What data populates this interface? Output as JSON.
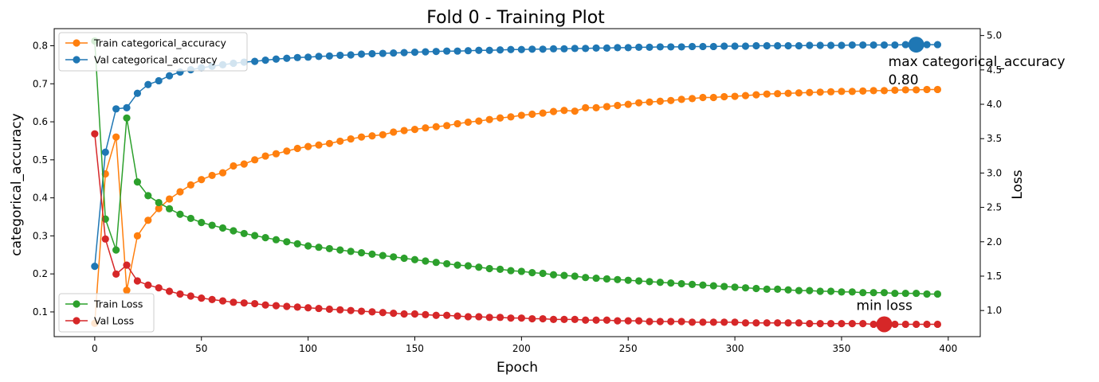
{
  "chart_data": {
    "type": "line",
    "title": "Fold 0 - Training Plot",
    "xlabel": "Epoch",
    "ylabel_left": "categorical_accuracy",
    "ylabel_right": "Loss",
    "xlim": [
      -19,
      415
    ],
    "ylim_left": [
      0.035,
      0.845
    ],
    "ylim_right": [
      0.62,
      5.1
    ],
    "xticks": [
      0,
      50,
      100,
      150,
      200,
      250,
      300,
      350,
      400
    ],
    "yticks_left": [
      0.1,
      0.2,
      0.3,
      0.4,
      0.5,
      0.6,
      0.7,
      0.8
    ],
    "yticks_right": [
      1.0,
      1.5,
      2.0,
      2.5,
      3.0,
      3.5,
      4.0,
      4.5,
      5.0
    ],
    "grid": false,
    "x_step": 5,
    "x_start": 0,
    "series": [
      {
        "name": "Train categorical_accuracy",
        "axis": "left",
        "color": "#ff7f0e",
        "values": [
          0.07,
          0.463,
          0.56,
          0.157,
          0.3,
          0.341,
          0.372,
          0.397,
          0.416,
          0.434,
          0.448,
          0.459,
          0.466,
          0.484,
          0.489,
          0.5,
          0.51,
          0.516,
          0.523,
          0.53,
          0.535,
          0.539,
          0.543,
          0.549,
          0.555,
          0.56,
          0.563,
          0.566,
          0.573,
          0.577,
          0.58,
          0.584,
          0.587,
          0.59,
          0.595,
          0.599,
          0.602,
          0.606,
          0.61,
          0.613,
          0.617,
          0.62,
          0.623,
          0.627,
          0.63,
          0.628,
          0.637,
          0.637,
          0.64,
          0.643,
          0.646,
          0.65,
          0.652,
          0.654,
          0.656,
          0.659,
          0.661,
          0.664,
          0.664,
          0.666,
          0.667,
          0.669,
          0.671,
          0.673,
          0.674,
          0.675,
          0.676,
          0.677,
          0.678,
          0.679,
          0.68,
          0.68,
          0.681,
          0.682,
          0.682,
          0.683,
          0.684,
          0.684,
          0.685,
          0.685
        ]
      },
      {
        "name": "Val categorical_accuracy",
        "axis": "left",
        "color": "#1f77b4",
        "values": [
          0.22,
          0.52,
          0.634,
          0.637,
          0.675,
          0.698,
          0.708,
          0.721,
          0.731,
          0.737,
          0.742,
          0.746,
          0.75,
          0.754,
          0.757,
          0.759,
          0.762,
          0.765,
          0.767,
          0.769,
          0.77,
          0.772,
          0.773,
          0.775,
          0.776,
          0.778,
          0.779,
          0.78,
          0.781,
          0.782,
          0.783,
          0.784,
          0.785,
          0.786,
          0.786,
          0.787,
          0.788,
          0.788,
          0.789,
          0.79,
          0.79,
          0.791,
          0.791,
          0.792,
          0.792,
          0.793,
          0.793,
          0.794,
          0.794,
          0.795,
          0.795,
          0.796,
          0.796,
          0.797,
          0.797,
          0.797,
          0.798,
          0.798,
          0.798,
          0.799,
          0.799,
          0.799,
          0.8,
          0.8,
          0.8,
          0.8,
          0.8,
          0.801,
          0.801,
          0.801,
          0.801,
          0.802,
          0.802,
          0.802,
          0.802,
          0.802,
          0.803,
          0.803,
          0.803,
          0.803
        ]
      },
      {
        "name": "Train Loss",
        "axis": "right",
        "color": "#2ca02c",
        "values": [
          4.92,
          2.33,
          1.88,
          3.8,
          2.87,
          2.67,
          2.57,
          2.48,
          2.4,
          2.34,
          2.28,
          2.24,
          2.2,
          2.16,
          2.12,
          2.09,
          2.06,
          2.03,
          2.0,
          1.97,
          1.94,
          1.92,
          1.9,
          1.88,
          1.86,
          1.84,
          1.82,
          1.8,
          1.78,
          1.76,
          1.74,
          1.72,
          1.7,
          1.68,
          1.66,
          1.65,
          1.63,
          1.61,
          1.6,
          1.58,
          1.57,
          1.55,
          1.54,
          1.52,
          1.51,
          1.5,
          1.48,
          1.47,
          1.46,
          1.45,
          1.44,
          1.43,
          1.42,
          1.41,
          1.4,
          1.39,
          1.38,
          1.37,
          1.36,
          1.35,
          1.34,
          1.33,
          1.32,
          1.31,
          1.31,
          1.3,
          1.29,
          1.29,
          1.28,
          1.28,
          1.27,
          1.27,
          1.26,
          1.26,
          1.26,
          1.25,
          1.25,
          1.25,
          1.24,
          1.24
        ]
      },
      {
        "name": "Val Loss",
        "axis": "right",
        "color": "#d62728",
        "values": [
          3.57,
          2.04,
          1.53,
          1.66,
          1.43,
          1.37,
          1.33,
          1.28,
          1.24,
          1.21,
          1.18,
          1.16,
          1.14,
          1.12,
          1.11,
          1.1,
          1.08,
          1.07,
          1.06,
          1.05,
          1.04,
          1.03,
          1.02,
          1.01,
          1.0,
          0.99,
          0.98,
          0.97,
          0.96,
          0.95,
          0.95,
          0.94,
          0.93,
          0.93,
          0.92,
          0.91,
          0.91,
          0.9,
          0.9,
          0.89,
          0.89,
          0.88,
          0.88,
          0.87,
          0.87,
          0.87,
          0.86,
          0.86,
          0.86,
          0.85,
          0.85,
          0.85,
          0.84,
          0.84,
          0.84,
          0.84,
          0.83,
          0.83,
          0.83,
          0.83,
          0.83,
          0.82,
          0.82,
          0.82,
          0.82,
          0.82,
          0.82,
          0.81,
          0.81,
          0.81,
          0.81,
          0.81,
          0.81,
          0.8,
          0.8,
          0.8,
          0.8,
          0.8,
          0.8,
          0.8
        ]
      }
    ],
    "annotations": [
      {
        "name": "max-accuracy",
        "text_line1": "max categorical_accuracy",
        "text_line2": "0.80",
        "x": 385,
        "y": 0.803,
        "axis": "left",
        "color": "#1f77b4"
      },
      {
        "name": "min-loss",
        "text_line1": "min loss",
        "x": 370,
        "y": 0.8,
        "axis": "right",
        "color": "#d62728"
      }
    ],
    "legends": [
      {
        "placement": "upper-left",
        "entries": [
          "Train categorical_accuracy",
          "Val categorical_accuracy"
        ]
      },
      {
        "placement": "lower-left",
        "entries": [
          "Train Loss",
          "Val Loss"
        ]
      }
    ]
  }
}
